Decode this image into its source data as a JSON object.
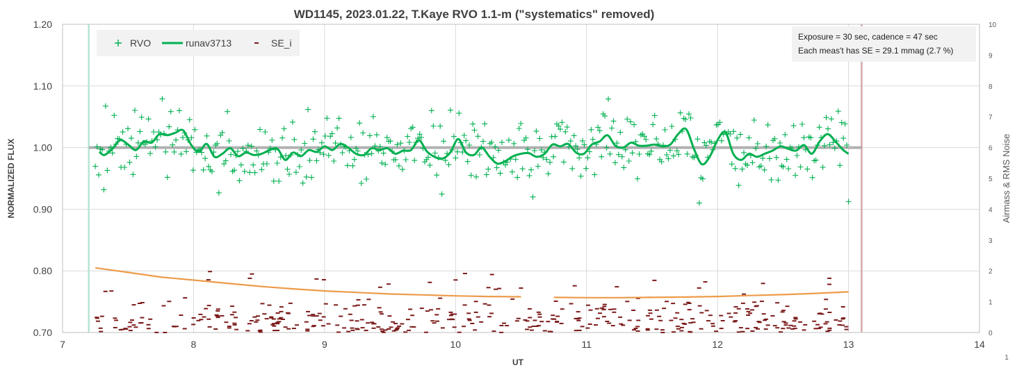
{
  "chart_data": {
    "type": "scatter",
    "title": "WD1145, 2023.01.22, T.Kaye RVO 1.1-m (\"systematics\" removed)",
    "xlabel": "UT",
    "ylabel": "NORMALIZED FLUX",
    "y2label": "Airmass & RMS Noise",
    "xlim": [
      7,
      14
    ],
    "ylim": [
      0.7,
      1.2
    ],
    "y2lim": [
      0,
      10
    ],
    "x_ticks": [
      "7",
      "8",
      "9",
      "10",
      "11",
      "12",
      "13",
      "14"
    ],
    "y_ticks": [
      "0.70",
      "0.80",
      "0.90",
      "1.00",
      "1.10",
      "1.20"
    ],
    "y2_ticks": [
      "0",
      "1",
      "2",
      "3",
      "4",
      "5",
      "6",
      "7",
      "8",
      "9",
      "10"
    ],
    "corner_label": "1",
    "grid": true,
    "legend_position": "top-left",
    "legend": [
      {
        "name": "RVO",
        "color": "#00b050"
      },
      {
        "name": "runav3713",
        "color": "#00b050"
      },
      {
        "name": "SE_i",
        "color": "#7b1a1a"
      }
    ],
    "annotation_lines": [
      "Exposure = 30 sec, cadence = 47 sec",
      "Each  meas't has SE = 29.1 mmag (2.7 %)"
    ],
    "reference_level": 1.0,
    "vertical_markers": [
      {
        "x": 7.2,
        "color": "#b7e4d4"
      },
      {
        "x": 13.1,
        "color": "#d3a8a8"
      }
    ],
    "rvo_x_range": [
      7.25,
      13.0
    ],
    "rvo_count": 440,
    "rvo_scatter_sigma": 0.027,
    "runav_points": [
      [
        7.28,
        0.993
      ],
      [
        7.32,
        0.988
      ],
      [
        7.38,
        0.998
      ],
      [
        7.44,
        1.012
      ],
      [
        7.5,
        1.005
      ],
      [
        7.56,
        0.996
      ],
      [
        7.62,
        1.01
      ],
      [
        7.68,
        1.008
      ],
      [
        7.74,
        1.022
      ],
      [
        7.8,
        1.02
      ],
      [
        7.86,
        1.024
      ],
      [
        7.92,
        1.028
      ],
      [
        7.98,
        1.005
      ],
      [
        8.04,
        0.993
      ],
      [
        8.1,
        1.006
      ],
      [
        8.16,
        0.985
      ],
      [
        8.22,
        0.99
      ],
      [
        8.28,
        0.999
      ],
      [
        8.34,
        0.986
      ],
      [
        8.4,
        0.992
      ],
      [
        8.46,
        0.988
      ],
      [
        8.52,
        0.99
      ],
      [
        8.58,
        0.996
      ],
      [
        8.64,
        0.998
      ],
      [
        8.7,
        0.98
      ],
      [
        8.76,
        0.992
      ],
      [
        8.82,
        0.986
      ],
      [
        8.88,
        0.996
      ],
      [
        8.94,
        0.993
      ],
      [
        9.0,
        1.002
      ],
      [
        9.06,
        0.996
      ],
      [
        9.12,
        1.006
      ],
      [
        9.18,
        1.0
      ],
      [
        9.24,
        0.99
      ],
      [
        9.3,
        0.988
      ],
      [
        9.36,
        0.999
      ],
      [
        9.42,
        0.996
      ],
      [
        9.48,
        0.999
      ],
      [
        9.54,
        0.99
      ],
      [
        9.6,
        0.995
      ],
      [
        9.66,
        0.996
      ],
      [
        9.72,
        1.012
      ],
      [
        9.78,
        0.994
      ],
      [
        9.84,
        0.985
      ],
      [
        9.9,
        0.982
      ],
      [
        9.96,
        0.992
      ],
      [
        10.02,
        1.014
      ],
      [
        10.08,
        0.992
      ],
      [
        10.14,
        0.988
      ],
      [
        10.2,
        1.0
      ],
      [
        10.26,
        0.985
      ],
      [
        10.32,
        0.974
      ],
      [
        10.38,
        0.978
      ],
      [
        10.44,
        0.986
      ],
      [
        10.5,
        0.99
      ],
      [
        10.56,
        0.991
      ],
      [
        10.62,
        0.985
      ],
      [
        10.68,
        0.99
      ],
      [
        10.74,
        1.005
      ],
      [
        10.8,
        1.002
      ],
      [
        10.86,
        1.006
      ],
      [
        10.92,
        0.992
      ],
      [
        10.98,
        0.99
      ],
      [
        11.04,
        1.005
      ],
      [
        11.1,
        1.01
      ],
      [
        11.16,
        1.02
      ],
      [
        11.22,
        1.003
      ],
      [
        11.28,
        1.0
      ],
      [
        11.34,
        1.008
      ],
      [
        11.4,
        1.003
      ],
      [
        11.46,
        1.003
      ],
      [
        11.52,
        1.005
      ],
      [
        11.58,
        1.002
      ],
      [
        11.64,
        1.005
      ],
      [
        11.7,
        1.022
      ],
      [
        11.76,
        1.03
      ],
      [
        11.82,
        0.998
      ],
      [
        11.88,
        0.973
      ],
      [
        11.94,
        0.985
      ],
      [
        12.0,
        1.012
      ],
      [
        12.06,
        1.025
      ],
      [
        12.12,
        0.99
      ],
      [
        12.18,
        0.98
      ],
      [
        12.24,
        0.99
      ],
      [
        12.3,
        0.985
      ],
      [
        12.36,
        0.99
      ],
      [
        12.42,
        0.995
      ],
      [
        12.48,
        1.002
      ],
      [
        12.54,
        0.998
      ],
      [
        12.6,
        0.995
      ],
      [
        12.66,
        1.004
      ],
      [
        12.72,
        0.99
      ],
      [
        12.78,
        1.01
      ],
      [
        12.84,
        1.022
      ],
      [
        12.9,
        1.01
      ],
      [
        12.96,
        0.996
      ],
      [
        13.0,
        0.99
      ]
    ],
    "airmass_points": [
      [
        7.25,
        2.1
      ],
      [
        7.5,
        1.95
      ],
      [
        7.75,
        1.8
      ],
      [
        8.0,
        1.7
      ],
      [
        8.25,
        1.6
      ],
      [
        8.5,
        1.5
      ],
      [
        8.75,
        1.42
      ],
      [
        9.0,
        1.35
      ],
      [
        9.25,
        1.3
      ],
      [
        9.5,
        1.25
      ],
      [
        9.75,
        1.22
      ],
      [
        10.0,
        1.19
      ],
      [
        10.25,
        1.17
      ],
      [
        10.5,
        1.16
      ],
      [
        10.55,
        null
      ],
      [
        10.75,
        1.14
      ],
      [
        11.0,
        1.13
      ],
      [
        11.25,
        1.13
      ],
      [
        11.5,
        1.14
      ],
      [
        11.75,
        1.15
      ],
      [
        12.0,
        1.17
      ],
      [
        12.25,
        1.2
      ],
      [
        12.5,
        1.23
      ],
      [
        12.75,
        1.27
      ],
      [
        13.0,
        1.32
      ]
    ],
    "se_range": [
      0,
      1.6
    ],
    "se_count": 440,
    "seed": 8713
  }
}
